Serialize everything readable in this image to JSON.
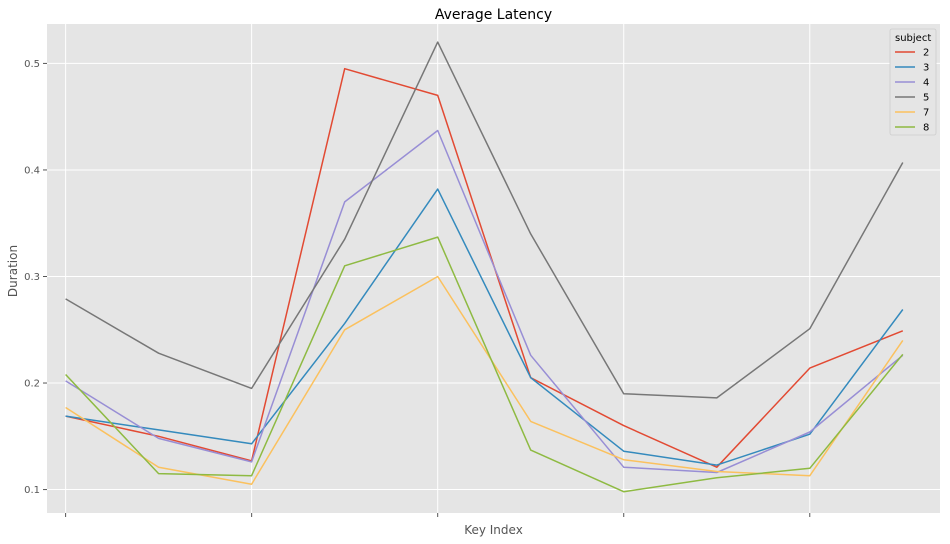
{
  "chart_data": {
    "type": "line",
    "title": "Average Latency",
    "xlabel": "Key Index",
    "ylabel": "Duration",
    "x": [
      0,
      1,
      2,
      3,
      4,
      5,
      6,
      7,
      8,
      9
    ],
    "xlim": [
      -0.2,
      9.4
    ],
    "ylim": [
      0.078,
      0.537
    ],
    "yticks": [
      0.1,
      0.2,
      0.3,
      0.4,
      0.5
    ],
    "ytick_labels": [
      "0.1",
      "0.2",
      "0.3",
      "0.4",
      "0.5"
    ],
    "xticks": [
      0,
      2,
      4,
      6,
      8
    ],
    "xtick_labels": [
      "",
      "",
      "",
      "",
      ""
    ],
    "grid": true,
    "background": "#e5e5e5",
    "legend": {
      "title": "subject",
      "placement": "top-right"
    },
    "series": [
      {
        "name": "2",
        "color": "#e24a33",
        "values": [
          0.169,
          0.15,
          0.127,
          0.495,
          0.47,
          0.205,
          0.16,
          0.121,
          0.214,
          0.249
        ]
      },
      {
        "name": "3",
        "color": "#348abd",
        "values": [
          0.169,
          0.156,
          0.143,
          0.256,
          0.382,
          0.205,
          0.136,
          0.123,
          0.152,
          0.269
        ]
      },
      {
        "name": "4",
        "color": "#988ed5",
        "values": [
          0.202,
          0.148,
          0.126,
          0.37,
          0.437,
          0.226,
          0.121,
          0.116,
          0.154,
          0.226
        ]
      },
      {
        "name": "5",
        "color": "#777777",
        "values": [
          0.279,
          0.228,
          0.195,
          0.335,
          0.52,
          0.34,
          0.19,
          0.186,
          0.251,
          0.407
        ]
      },
      {
        "name": "7",
        "color": "#fbc15e",
        "values": [
          0.177,
          0.121,
          0.105,
          0.25,
          0.3,
          0.164,
          0.128,
          0.117,
          0.113,
          0.24
        ]
      },
      {
        "name": "8",
        "color": "#8eba42",
        "values": [
          0.208,
          0.115,
          0.113,
          0.31,
          0.337,
          0.137,
          0.098,
          0.111,
          0.12,
          0.227
        ]
      }
    ]
  }
}
